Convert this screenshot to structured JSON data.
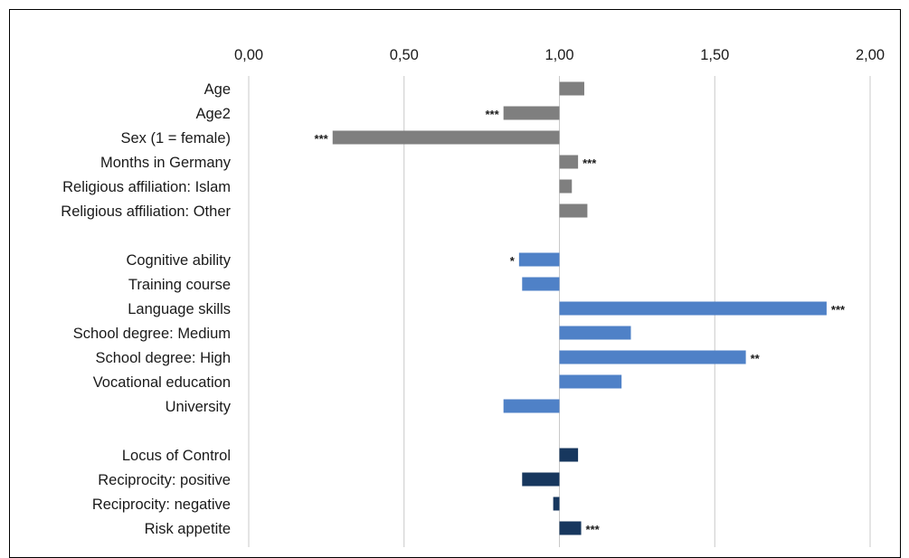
{
  "chart_data": {
    "type": "bar",
    "orientation": "horizontal",
    "baseline": 1.0,
    "xlim": [
      0,
      2
    ],
    "xticks": [
      "0,00",
      "0,50",
      "1,00",
      "1,50",
      "2,00"
    ],
    "xtick_values": [
      0,
      0.5,
      1.0,
      1.5,
      2.0
    ],
    "grid": "vertical",
    "groups": [
      {
        "color": "#7f7f7f",
        "items": [
          {
            "label": "Age",
            "value": 1.08,
            "sig": ""
          },
          {
            "label": "Age2",
            "value": 0.82,
            "sig": "***"
          },
          {
            "label": "Sex (1 = female)",
            "value": 0.27,
            "sig": "***"
          },
          {
            "label": "Months in Germany",
            "value": 1.06,
            "sig": "***"
          },
          {
            "label": "Religious affiliation: Islam",
            "value": 1.04,
            "sig": ""
          },
          {
            "label": "Religious affiliation: Other",
            "value": 1.09,
            "sig": ""
          }
        ]
      },
      {
        "color": "#4f81c7",
        "items": [
          {
            "label": "Cognitive ability",
            "value": 0.87,
            "sig": "*"
          },
          {
            "label": "Training course",
            "value": 0.88,
            "sig": ""
          },
          {
            "label": "Language skills",
            "value": 1.86,
            "sig": "***"
          },
          {
            "label": "School degree: Medium",
            "value": 1.23,
            "sig": ""
          },
          {
            "label": "School degree: High",
            "value": 1.6,
            "sig": "**"
          },
          {
            "label": "Vocational education",
            "value": 1.2,
            "sig": ""
          },
          {
            "label": "University",
            "value": 0.82,
            "sig": ""
          }
        ]
      },
      {
        "color": "#17375e",
        "items": [
          {
            "label": "Locus of Control",
            "value": 1.06,
            "sig": ""
          },
          {
            "label": "Reciprocity: positive",
            "value": 0.88,
            "sig": ""
          },
          {
            "label": "Reciprocity: negative",
            "value": 0.98,
            "sig": ""
          },
          {
            "label": "Risk appetite",
            "value": 1.07,
            "sig": "***"
          }
        ]
      }
    ]
  }
}
